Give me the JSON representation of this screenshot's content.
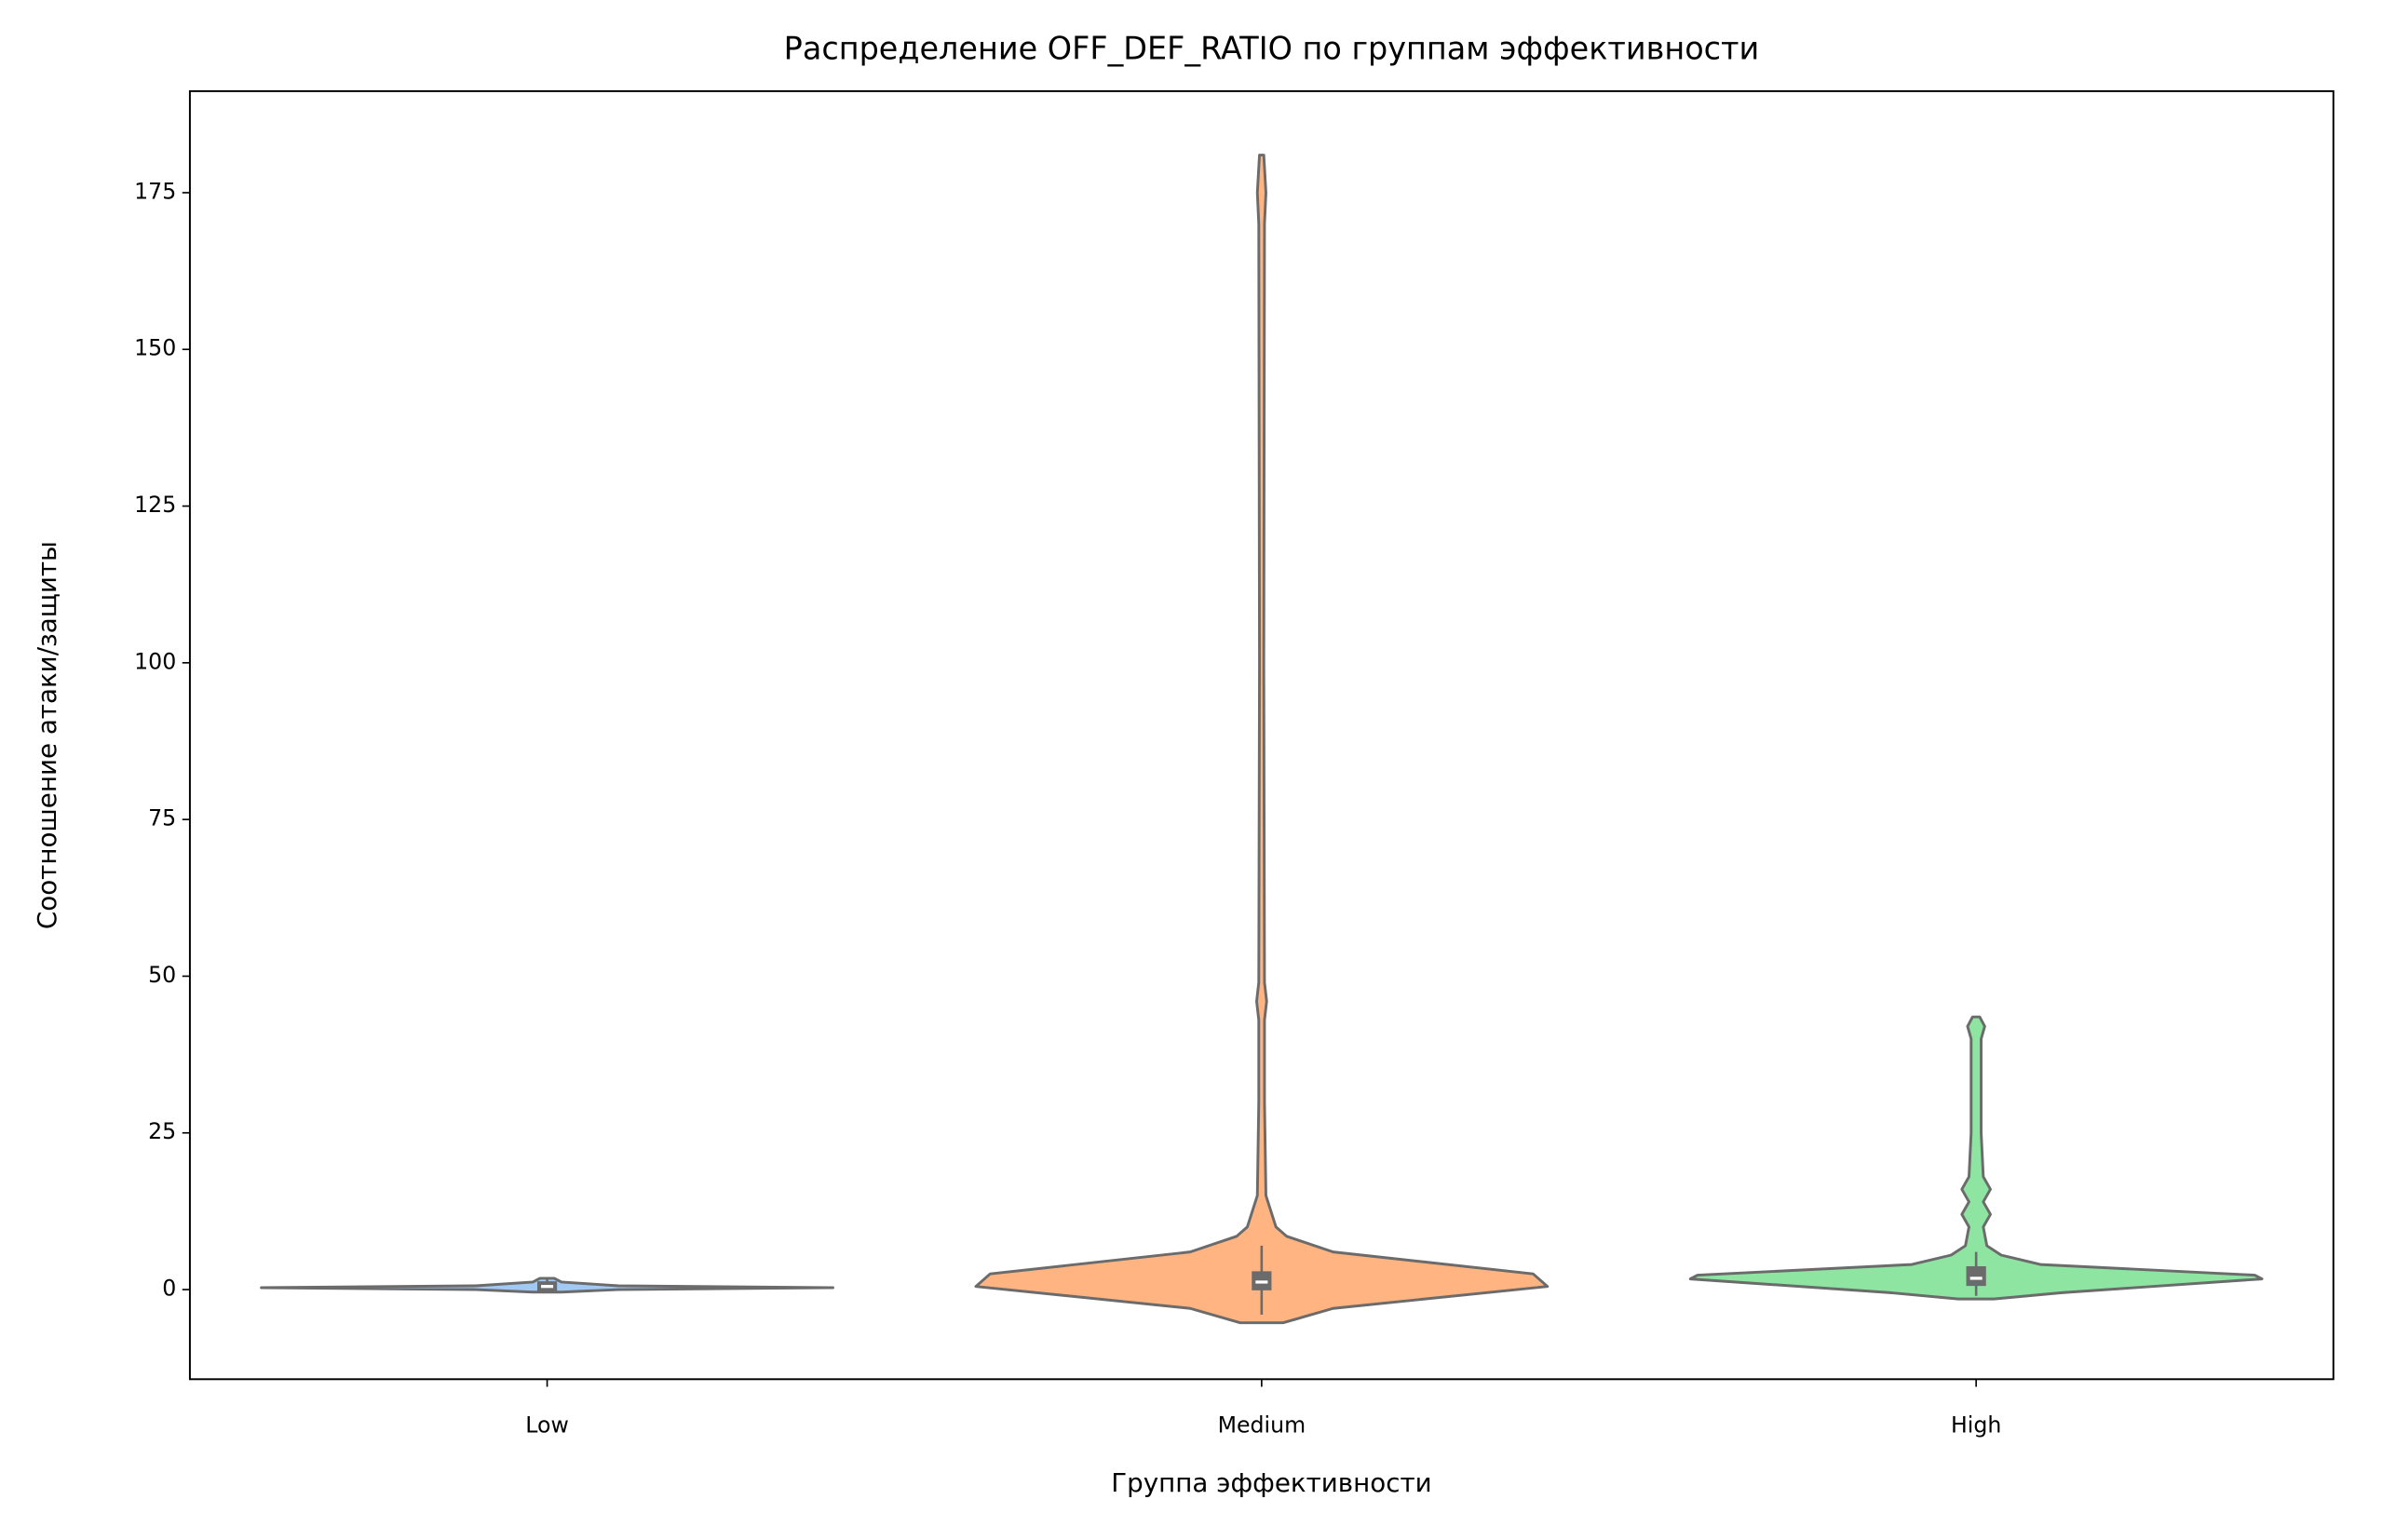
{
  "chart_data": {
    "type": "violin",
    "title": "Распределение OFF_DEF_RATIO по группам эффективности",
    "x_label": "Группа эффективности",
    "y_label": "Соотношение атаки/защиты",
    "categories": [
      "Low",
      "Medium",
      "High"
    ],
    "ylim": [
      -14.3,
      191.2
    ],
    "yticks": [
      0,
      25,
      50,
      75,
      100,
      125,
      150,
      175
    ],
    "outline_color": "#6b6b6b",
    "violins": [
      {
        "color": "#a1c9f4",
        "kde_y": [
          -0.4,
          0,
          0.3,
          0.6,
          1.2,
          1.8
        ],
        "kde_width": [
          0.02,
          0.1,
          0.4,
          0.1,
          0.02,
          0.01
        ],
        "whisker": [
          -0.4,
          1.8
        ],
        "q1": -0.2,
        "median": 0.5,
        "q3": 1.2
      },
      {
        "color": "#ffb482",
        "kde_y": [
          -5.3,
          -3,
          0.5,
          2.5,
          6,
          8.5,
          10,
          15,
          30,
          43,
          46,
          49,
          100,
          170,
          175,
          181
        ],
        "kde_width": [
          0.03,
          0.1,
          0.4,
          0.38,
          0.1,
          0.035,
          0.02,
          0.006,
          0.004,
          0.004,
          0.007,
          0.004,
          0.003,
          0.004,
          0.006,
          0.003
        ],
        "whisker": [
          -4,
          7
        ],
        "q1": 0,
        "median": 1.2,
        "q3": 2.8
      },
      {
        "color": "#8de5a1",
        "kde_y": [
          -1.5,
          -0.5,
          1.7,
          2.3,
          4,
          5.5,
          7,
          10,
          12,
          14,
          16,
          18,
          25,
          40,
          42,
          43.5
        ],
        "kde_width": [
          0.025,
          0.12,
          0.4,
          0.39,
          0.09,
          0.035,
          0.015,
          0.01,
          0.02,
          0.01,
          0.02,
          0.01,
          0.007,
          0.007,
          0.012,
          0.005
        ],
        "whisker": [
          -1,
          6
        ],
        "q1": 0.7,
        "median": 1.8,
        "q3": 3.6
      }
    ]
  }
}
